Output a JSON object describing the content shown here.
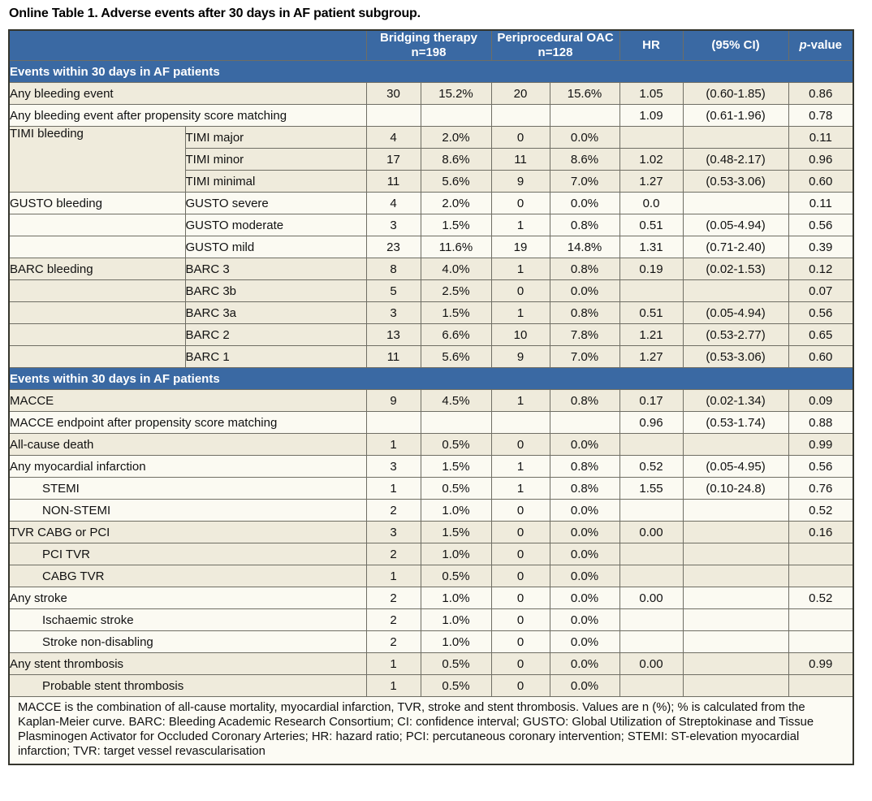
{
  "title": "Online Table 1. Adverse events after 30 days in AF patient subgroup.",
  "colors": {
    "header_blue": "#3a69a3",
    "row_cream": "#efebdc",
    "row_white": "#fbfaf2",
    "border": "#6f6e64"
  },
  "header": {
    "group1_line1": "Bridging therapy",
    "group1_line2": "n=198",
    "group2_line1": "Periprocedural OAC",
    "group2_line2": "n=128",
    "hr": "HR",
    "ci": "(95% CI)",
    "p_italic": "p",
    "p_rest": "-value"
  },
  "sections": [
    {
      "band": "Events within 30 days in AF patients",
      "rows": [
        {
          "type": "full",
          "label": "Any bleeding event",
          "shade": "cream",
          "n1": "30",
          "p1": "15.2%",
          "n2": "20",
          "p2": "15.6%",
          "hr": "1.05",
          "ci": "(0.60-1.85)",
          "pv": "0.86"
        },
        {
          "type": "full",
          "label": "Any bleeding event after propensity score matching",
          "shade": "white",
          "n1": "",
          "p1": "",
          "n2": "",
          "p2": "",
          "hr": "1.09",
          "ci": "(0.61-1.96)",
          "pv": "0.78"
        },
        {
          "type": "group",
          "group": "TIMI bleeding",
          "rowspan": 3,
          "sub": "TIMI major",
          "shade": "cream",
          "n1": "4",
          "p1": "2.0%",
          "n2": "0",
          "p2": "0.0%",
          "hr": "",
          "ci": "",
          "pv": "0.11"
        },
        {
          "type": "sub",
          "sub": "TIMI minor",
          "shade": "cream",
          "n1": "17",
          "p1": "8.6%",
          "n2": "11",
          "p2": "8.6%",
          "hr": "1.02",
          "ci": "(0.48-2.17)",
          "pv": "0.96"
        },
        {
          "type": "sub",
          "sub": "TIMI minimal",
          "shade": "cream",
          "n1": "11",
          "p1": "5.6%",
          "n2": "9",
          "p2": "7.0%",
          "hr": "1.27",
          "ci": "(0.53-3.06)",
          "pv": "0.60"
        },
        {
          "type": "pair",
          "group": "GUSTO bleeding",
          "sub": "GUSTO severe",
          "shade": "white",
          "n1": "4",
          "p1": "2.0%",
          "n2": "0",
          "p2": "0.0%",
          "hr": "0.0",
          "ci": "",
          "pv": "0.11"
        },
        {
          "type": "pair",
          "group": "",
          "sub": "GUSTO moderate",
          "shade": "white",
          "n1": "3",
          "p1": "1.5%",
          "n2": "1",
          "p2": "0.8%",
          "hr": "0.51",
          "ci": "(0.05-4.94)",
          "pv": "0.56"
        },
        {
          "type": "pair",
          "group": "",
          "sub": "GUSTO mild",
          "shade": "white",
          "n1": "23",
          "p1": "11.6%",
          "n2": "19",
          "p2": "14.8%",
          "hr": "1.31",
          "ci": "(0.71-2.40)",
          "pv": "0.39"
        },
        {
          "type": "pair",
          "group": "BARC bleeding",
          "sub": "BARC 3",
          "shade": "cream",
          "n1": "8",
          "p1": "4.0%",
          "n2": "1",
          "p2": "0.8%",
          "hr": "0.19",
          "ci": "(0.02-1.53)",
          "pv": "0.12"
        },
        {
          "type": "pair",
          "group": "",
          "sub": "BARC 3b",
          "shade": "cream",
          "n1": "5",
          "p1": "2.5%",
          "n2": "0",
          "p2": "0.0%",
          "hr": "",
          "ci": "",
          "pv": "0.07"
        },
        {
          "type": "pair",
          "group": "",
          "sub": "BARC 3a",
          "shade": "cream",
          "n1": "3",
          "p1": "1.5%",
          "n2": "1",
          "p2": "0.8%",
          "hr": "0.51",
          "ci": "(0.05-4.94)",
          "pv": "0.56"
        },
        {
          "type": "pair",
          "group": "",
          "sub": "BARC 2",
          "shade": "cream",
          "n1": "13",
          "p1": "6.6%",
          "n2": "10",
          "p2": "7.8%",
          "hr": "1.21",
          "ci": "(0.53-2.77)",
          "pv": "0.65"
        },
        {
          "type": "pair",
          "group": "",
          "sub": "BARC 1",
          "shade": "cream",
          "n1": "11",
          "p1": "5.6%",
          "n2": "9",
          "p2": "7.0%",
          "hr": "1.27",
          "ci": "(0.53-3.06)",
          "pv": "0.60"
        }
      ]
    },
    {
      "band": "Events within 30 days in AF patients",
      "rows": [
        {
          "type": "full",
          "label": "MACCE",
          "shade": "cream",
          "n1": "9",
          "p1": "4.5%",
          "n2": "1",
          "p2": "0.8%",
          "hr": "0.17",
          "ci": "(0.02-1.34)",
          "pv": "0.09"
        },
        {
          "type": "full",
          "label": "MACCE endpoint after propensity score matching",
          "shade": "white",
          "n1": "",
          "p1": "",
          "n2": "",
          "p2": "",
          "hr": "0.96",
          "ci": "(0.53-1.74)",
          "pv": "0.88"
        },
        {
          "type": "full",
          "label": "All-cause death",
          "shade": "cream",
          "n1": "1",
          "p1": "0.5%",
          "n2": "0",
          "p2": "0.0%",
          "hr": "",
          "ci": "",
          "pv": "0.99"
        },
        {
          "type": "full",
          "label": "Any myocardial infarction",
          "shade": "white",
          "n1": "3",
          "p1": "1.5%",
          "n2": "1",
          "p2": "0.8%",
          "hr": "0.52",
          "ci": "(0.05-4.95)",
          "pv": "0.56"
        },
        {
          "type": "full",
          "indent": true,
          "label": "STEMI",
          "shade": "white",
          "n1": "1",
          "p1": "0.5%",
          "n2": "1",
          "p2": "0.8%",
          "hr": "1.55",
          "ci": "(0.10-24.8)",
          "pv": "0.76"
        },
        {
          "type": "full",
          "indent": true,
          "label": "NON-STEMI",
          "shade": "white",
          "n1": "2",
          "p1": "1.0%",
          "n2": "0",
          "p2": "0.0%",
          "hr": "",
          "ci": "",
          "pv": "0.52"
        },
        {
          "type": "full",
          "label": "TVR CABG or PCI",
          "shade": "cream",
          "n1": "3",
          "p1": "1.5%",
          "n2": "0",
          "p2": "0.0%",
          "hr": "0.00",
          "ci": "",
          "pv": "0.16"
        },
        {
          "type": "full",
          "indent": true,
          "label": "PCI TVR",
          "shade": "cream",
          "n1": "2",
          "p1": "1.0%",
          "n2": "0",
          "p2": "0.0%",
          "hr": "",
          "ci": "",
          "pv": ""
        },
        {
          "type": "full",
          "indent": true,
          "label": "CABG TVR",
          "shade": "cream",
          "n1": "1",
          "p1": "0.5%",
          "n2": "0",
          "p2": "0.0%",
          "hr": "",
          "ci": "",
          "pv": ""
        },
        {
          "type": "full",
          "label": "Any stroke",
          "shade": "white",
          "n1": "2",
          "p1": "1.0%",
          "n2": "0",
          "p2": "0.0%",
          "hr": "0.00",
          "ci": "",
          "pv": "0.52"
        },
        {
          "type": "full",
          "indent": true,
          "label": "Ischaemic stroke",
          "shade": "white",
          "n1": "2",
          "p1": "1.0%",
          "n2": "0",
          "p2": "0.0%",
          "hr": "",
          "ci": "",
          "pv": ""
        },
        {
          "type": "full",
          "indent": true,
          "label": "Stroke non-disabling",
          "shade": "white",
          "n1": "2",
          "p1": "1.0%",
          "n2": "0",
          "p2": "0.0%",
          "hr": "",
          "ci": "",
          "pv": ""
        },
        {
          "type": "full",
          "label": "Any stent thrombosis",
          "shade": "cream",
          "n1": "1",
          "p1": "0.5%",
          "n2": "0",
          "p2": "0.0%",
          "hr": "0.00",
          "ci": "",
          "pv": "0.99"
        },
        {
          "type": "full",
          "indent": true,
          "label": "Probable stent thrombosis",
          "shade": "cream",
          "n1": "1",
          "p1": "0.5%",
          "n2": "0",
          "p2": "0.0%",
          "hr": "",
          "ci": "",
          "pv": ""
        }
      ]
    }
  ],
  "footnote": "MACCE is the combination of all-cause mortality, myocardial infarction, TVR, stroke and stent thrombosis. Values are n (%); % is calculated from the Kaplan-Meier curve. BARC: Bleeding Academic Research Consortium; CI: confidence interval; GUSTO: Global Utilization of Streptokinase and Tissue Plasminogen Activator for Occluded Coronary Arteries; HR: hazard ratio; PCI: percutaneous coronary intervention; STEMI: ST-elevation myocardial infarction; TVR: target vessel revascularisation"
}
